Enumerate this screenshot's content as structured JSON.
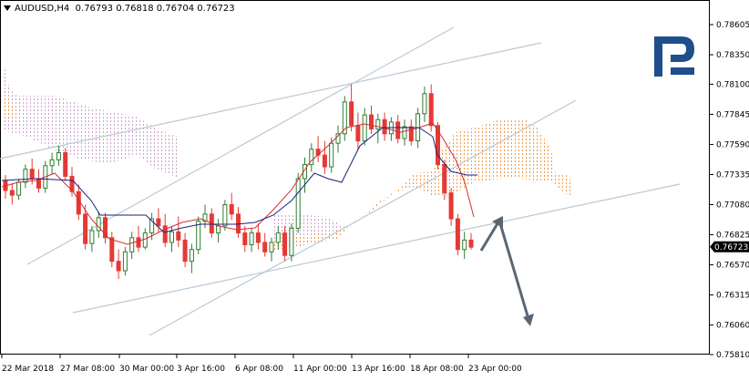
{
  "header": {
    "symbol": "AUDUSD,H4",
    "open": "0.76793",
    "high": "0.76818",
    "low": "0.76704",
    "close": "0.76723"
  },
  "chart_data": {
    "type": "candlestick",
    "title": "",
    "ylim": [
      0.7581,
      0.787
    ],
    "y_ticks": [
      "0.78605",
      "0.78350",
      "0.78100",
      "0.77845",
      "0.77590",
      "0.77335",
      "0.77080",
      "0.76825",
      "0.76570",
      "0.76315",
      "0.76060",
      "0.75810"
    ],
    "x_ticks": [
      "22 Mar 2018",
      "27 Mar 08:00",
      "30 Mar 00:00",
      "3 Apr 16:00",
      "6 Apr 08:00",
      "11 Apr 00:00",
      "13 Apr 16:00",
      "18 Apr 08:00",
      "23 Apr 00:00"
    ],
    "current_price": "0.76723",
    "colors": {
      "up_candle": "#2e7d32",
      "down_candle": "#e53935",
      "tenkan": "#d32f2f",
      "kijun": "#1a237e",
      "cloud_a": "#ef9a4a",
      "cloud_b": "#c9a3c9",
      "trendline": "#b9c9d6",
      "arrow": "#5a6773",
      "price_tag": "#000000"
    },
    "forecast_arrow": [
      "up to 0.7706",
      "down to 0.7603"
    ]
  },
  "logo": {
    "name": "rpk-logo",
    "color": "#1f4e8c"
  }
}
